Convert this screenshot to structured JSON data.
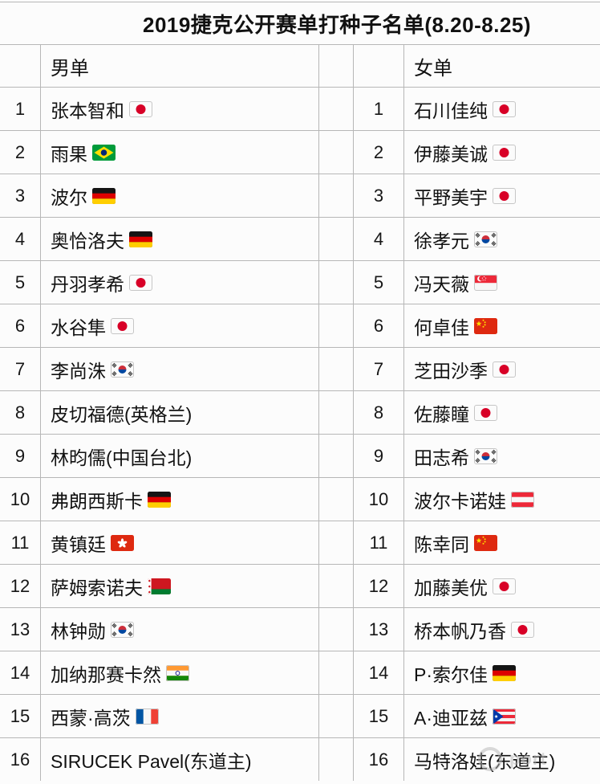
{
  "title": "2019捷克公开赛单打种子名单(8.20-8.25)",
  "headers": {
    "men": "男单",
    "women": "女单"
  },
  "men": [
    {
      "rank": 1,
      "name": "张本智和",
      "flag": "japan"
    },
    {
      "rank": 2,
      "name": "雨果",
      "flag": "brazil"
    },
    {
      "rank": 3,
      "name": "波尔",
      "flag": "germany"
    },
    {
      "rank": 4,
      "name": "奥恰洛夫",
      "flag": "germany"
    },
    {
      "rank": 5,
      "name": "丹羽孝希",
      "flag": "japan"
    },
    {
      "rank": 6,
      "name": "水谷隼",
      "flag": "japan"
    },
    {
      "rank": 7,
      "name": "李尚洙",
      "flag": "south-korea"
    },
    {
      "rank": 8,
      "name": "皮切福德(英格兰)",
      "flag": null
    },
    {
      "rank": 9,
      "name": "林昀儒(中国台北)",
      "flag": null
    },
    {
      "rank": 10,
      "name": "弗朗西斯卡",
      "flag": "germany"
    },
    {
      "rank": 11,
      "name": "黄镇廷",
      "flag": "hong-kong"
    },
    {
      "rank": 12,
      "name": "萨姆索诺夫",
      "flag": "belarus"
    },
    {
      "rank": 13,
      "name": "林钟勋",
      "flag": "south-korea"
    },
    {
      "rank": 14,
      "name": "加纳那赛卡然",
      "flag": "india"
    },
    {
      "rank": 15,
      "name": "西蒙·高茨",
      "flag": "france"
    },
    {
      "rank": 16,
      "name": "SIRUCEK Pavel(东道主)",
      "flag": null
    }
  ],
  "women": [
    {
      "rank": 1,
      "name": "石川佳纯",
      "flag": "japan"
    },
    {
      "rank": 2,
      "name": "伊藤美诚",
      "flag": "japan"
    },
    {
      "rank": 3,
      "name": "平野美宇",
      "flag": "japan"
    },
    {
      "rank": 4,
      "name": "徐孝元",
      "flag": "south-korea"
    },
    {
      "rank": 5,
      "name": "冯天薇",
      "flag": "singapore"
    },
    {
      "rank": 6,
      "name": "何卓佳",
      "flag": "china"
    },
    {
      "rank": 7,
      "name": "芝田沙季",
      "flag": "japan"
    },
    {
      "rank": 8,
      "name": "佐藤瞳",
      "flag": "japan"
    },
    {
      "rank": 9,
      "name": "田志希",
      "flag": "south-korea"
    },
    {
      "rank": 10,
      "name": "波尔卡诺娃",
      "flag": "austria"
    },
    {
      "rank": 11,
      "name": "陈幸同",
      "flag": "china"
    },
    {
      "rank": 12,
      "name": "加藤美优",
      "flag": "japan"
    },
    {
      "rank": 13,
      "name": "桥本帆乃香",
      "flag": "japan"
    },
    {
      "rank": 14,
      "name": "P·索尔佳",
      "flag": "germany"
    },
    {
      "rank": 15,
      "name": "A·迪亚兹",
      "flag": "puerto-rico"
    },
    {
      "rank": 16,
      "name": "马特洛娃(东道主)",
      "flag": null
    }
  ],
  "watermark": {
    "text": "port",
    "icon": "circular-logo"
  },
  "colors": {
    "text": "#111111",
    "border": "#b7b7b7",
    "background": "#fcfcfc",
    "watermark_gray": "#b5b5b5",
    "flag_red": "#de2910",
    "flag_japan_red": "#d80027"
  }
}
